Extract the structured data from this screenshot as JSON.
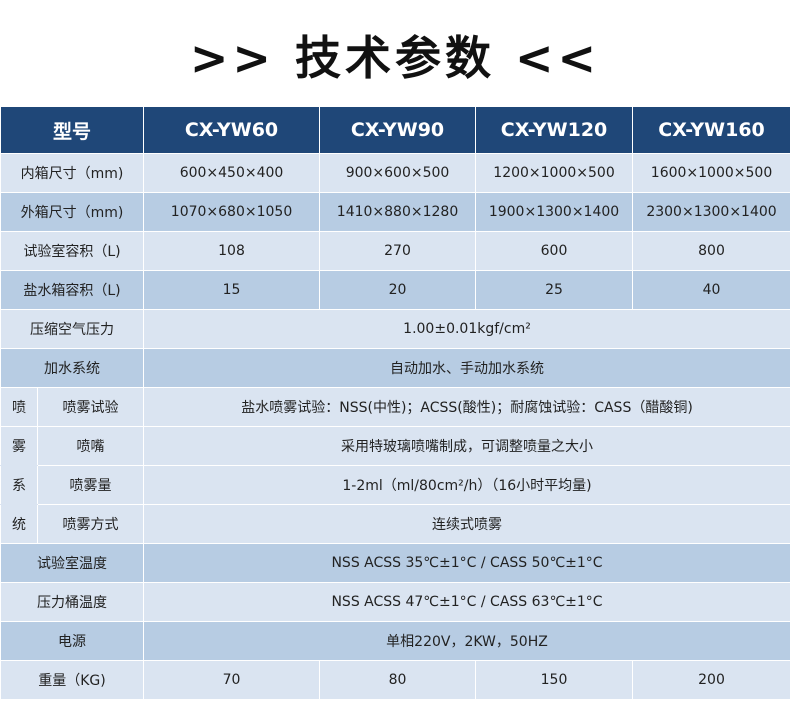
{
  "title": ">> 技术参数 <<",
  "header": [
    "型号",
    "CX-YW60",
    "CX-YW90",
    "CX-YW120",
    "CX-YW160"
  ],
  "rows": [
    {
      "label": "内箱尺寸（mm)",
      "values": [
        "600×450×400",
        "900×600×500",
        "1200×1000×500",
        "1600×1000×500"
      ]
    },
    {
      "label": "外箱尺寸（mm)",
      "values": [
        "1070×680×1050",
        "1410×880×1280",
        "1900×1300×1400",
        "2300×1300×1400"
      ]
    },
    {
      "label": "试验室容积（L)",
      "values": [
        "108",
        "270",
        "600",
        "800"
      ]
    },
    {
      "label": "盐水箱容积（L)",
      "values": [
        "15",
        "20",
        "25",
        "40"
      ]
    },
    {
      "label": "压缩空气压力",
      "value": "1.00±0.01kgf/cm²"
    },
    {
      "label": "加水系统",
      "value": "自动加水、手动加水系统"
    }
  ],
  "spray": {
    "group": [
      "喷",
      "雾",
      "系",
      "统"
    ],
    "rows": [
      {
        "label": "喷雾试验",
        "value": "盐水喷雾试验：NSS(中性)；ACSS(酸性)；耐腐蚀试验：CASS（醋酸铜)"
      },
      {
        "label": "喷嘴",
        "value": "采用特玻璃喷嘴制成，可调整喷量之大小"
      },
      {
        "label": "喷雾量",
        "value": "1-2ml（ml/80cm²/h）（16小时平均量)"
      },
      {
        "label": "喷雾方式",
        "value": "连续式喷雾"
      }
    ]
  },
  "rows2": [
    {
      "label": "试验室温度",
      "value": "NSS ACSS 35℃±1°C / CASS 50℃±1°C"
    },
    {
      "label": "压力桶温度",
      "value": "NSS ACSS 47℃±1°C / CASS 63℃±1°C"
    },
    {
      "label": "电源",
      "value": "单相220V，2KW，50HZ"
    },
    {
      "label": "重量（KG)",
      "values": [
        "70",
        "80",
        "150",
        "200"
      ]
    }
  ],
  "colors": {
    "header": "#1f4778",
    "light": "#dae4f1",
    "dark": "#b7cce3"
  }
}
